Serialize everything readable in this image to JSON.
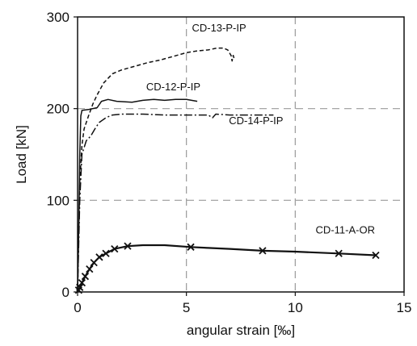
{
  "chart_data": {
    "type": "line",
    "title": "",
    "xlabel": "angular strain [‰]",
    "ylabel": "Load [kN]",
    "xlim": [
      0,
      15
    ],
    "ylim": [
      0,
      300
    ],
    "x_ticks": [
      "0",
      "5",
      "10",
      "15"
    ],
    "y_ticks": [
      "0",
      "100",
      "200",
      "300"
    ],
    "grid": "dashed gray at x = 5, 10 and y = 100, 200",
    "series": [
      {
        "name": "CD-13-P-IP",
        "style": "dashed",
        "points": [
          [
            0,
            0
          ],
          [
            0.05,
            60
          ],
          [
            0.1,
            120
          ],
          [
            0.2,
            160
          ],
          [
            0.3,
            178
          ],
          [
            0.5,
            192
          ],
          [
            0.7,
            205
          ],
          [
            0.9,
            215
          ],
          [
            1.2,
            228
          ],
          [
            1.6,
            238
          ],
          [
            2.0,
            242
          ],
          [
            2.6,
            246
          ],
          [
            3.2,
            250
          ],
          [
            3.8,
            253
          ],
          [
            4.4,
            257
          ],
          [
            5.0,
            261
          ],
          [
            5.5,
            263
          ],
          [
            6.0,
            264
          ],
          [
            6.4,
            266
          ],
          [
            6.7,
            266
          ],
          [
            6.9,
            264
          ],
          [
            7.05,
            258
          ],
          [
            7.1,
            252
          ],
          [
            7.15,
            258
          ],
          [
            7.2,
            254
          ]
        ]
      },
      {
        "name": "CD-12-P-IP",
        "style": "solid",
        "points": [
          [
            0,
            0
          ],
          [
            0.06,
            80
          ],
          [
            0.1,
            150
          ],
          [
            0.15,
            192
          ],
          [
            0.2,
            198
          ],
          [
            0.5,
            199
          ],
          [
            0.9,
            201
          ],
          [
            1.1,
            208
          ],
          [
            1.4,
            210
          ],
          [
            1.8,
            208
          ],
          [
            2.5,
            207
          ],
          [
            3.0,
            209
          ],
          [
            3.5,
            210
          ],
          [
            4.0,
            209
          ],
          [
            4.5,
            210
          ],
          [
            5.0,
            210
          ],
          [
            5.5,
            208
          ]
        ]
      },
      {
        "name": "CD-14-P-IP",
        "style": "dash-dot",
        "points": [
          [
            0,
            0
          ],
          [
            0.1,
            100
          ],
          [
            0.2,
            150
          ],
          [
            0.4,
            165
          ],
          [
            0.6,
            170
          ],
          [
            0.8,
            178
          ],
          [
            1.0,
            185
          ],
          [
            1.3,
            190
          ],
          [
            1.6,
            193
          ],
          [
            2.0,
            194
          ],
          [
            3.0,
            194
          ],
          [
            4.0,
            193
          ],
          [
            5.0,
            193
          ],
          [
            6.0,
            193
          ],
          [
            6.2,
            190
          ],
          [
            6.35,
            194
          ],
          [
            7.0,
            193
          ],
          [
            8.0,
            193
          ],
          [
            9.0,
            193
          ]
        ]
      },
      {
        "name": "CD-11-A-OR",
        "style": "solid with x markers",
        "points": [
          [
            0,
            0
          ],
          [
            0.05,
            2
          ],
          [
            0.1,
            5
          ],
          [
            0.2,
            10
          ],
          [
            0.35,
            17
          ],
          [
            0.55,
            25
          ],
          [
            0.75,
            32
          ],
          [
            1.0,
            38
          ],
          [
            1.3,
            42
          ],
          [
            1.7,
            47
          ],
          [
            2.3,
            50
          ],
          [
            3.0,
            51
          ],
          [
            4.0,
            51
          ],
          [
            5.2,
            49
          ],
          [
            6.0,
            48
          ],
          [
            7.0,
            47
          ],
          [
            8.5,
            45
          ],
          [
            10.0,
            44
          ],
          [
            12.0,
            42
          ],
          [
            13.7,
            40
          ]
        ],
        "marker_x": [
          0.05,
          0.1,
          0.2,
          0.35,
          0.55,
          0.75,
          1.0,
          1.3,
          1.7,
          2.3,
          5.2,
          8.5,
          12.0,
          13.7
        ]
      }
    ],
    "annotations": [
      {
        "text": "CD-13-P-IP",
        "x": 6.5,
        "y": 284
      },
      {
        "text": "CD-12-P-IP",
        "x": 4.4,
        "y": 220
      },
      {
        "text": "CD-14-P-IP",
        "x": 8.2,
        "y": 183
      },
      {
        "text": "CD-11-A-OR",
        "x": 12.3,
        "y": 64
      }
    ]
  }
}
